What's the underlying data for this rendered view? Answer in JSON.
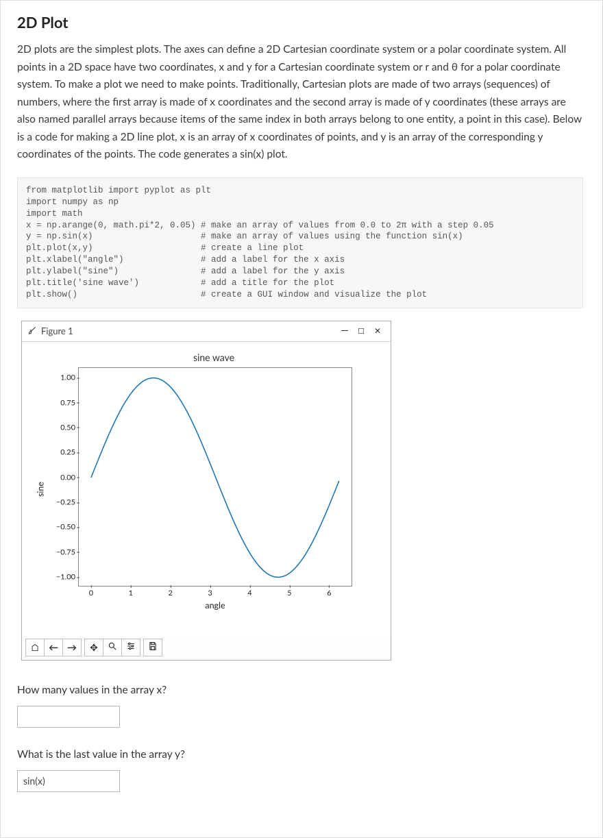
{
  "heading": "2D Plot",
  "intro": "2D plots are the simplest plots. The axes can define a 2D Cartesian coordinate system or a polar coordinate system. All points in a 2D space have two coordinates, x and y for a Cartesian coordinate system or r and θ  for a polar coordinate system. To make a plot we need to make points. Traditionally, Cartesian plots are made of two arrays (sequences) of numbers, where the first array is made of x coordinates and the second array is made of y coordinates (these arrays are also named parallel arrays because items of the same index in both arrays belong to one entity, a point in this case). Below is a code for making a 2D line plot, x is an array of x coordinates of points, and y is an array of the corresponding y coordinates of the points.  The code generates a sin(x) plot.",
  "code": "from matplotlib import pyplot as plt\nimport numpy as np\nimport math\nx = np.arange(0, math.pi*2, 0.05) # make an array of values from 0.0 to 2π with a step 0.05\ny = np.sin(x)                     # make an array of values using the function sin(x)\nplt.plot(x,y)                     # create a line plot\nplt.xlabel(\"angle\")               # add a label for the x axis\nplt.ylabel(\"sine\")                # add a label for the y axis\nplt.title('sine wave')            # add a title for the plot\nplt.show()                        # create a GUI window and visualize the plot",
  "figure": {
    "window_title": "Figure 1",
    "plot": {
      "type": "line",
      "title": "sine wave",
      "xlabel": "angle",
      "ylabel": "sine",
      "line_color": "#1f77b4",
      "line_width": 1.6,
      "background_color": "#ffffff",
      "border_color": "#888888",
      "xlim": [
        -0.31,
        6.6
      ],
      "ylim": [
        -1.1,
        1.1
      ],
      "xticks": [
        0,
        1,
        2,
        3,
        4,
        5,
        6
      ],
      "yticks": [
        -1.0,
        -0.75,
        -0.5,
        -0.25,
        0.0,
        0.25,
        0.5,
        0.75,
        1.0
      ],
      "ytick_labels": [
        "−1.00",
        "−0.75",
        "−0.50",
        "−0.25",
        "0.00",
        "0.25",
        "0.50",
        "0.75",
        "1.00"
      ],
      "x_data_range": {
        "start": 0.0,
        "stop": 6.283185307,
        "step": 0.05
      },
      "function": "sin"
    },
    "toolbar_buttons": [
      {
        "name": "home-icon",
        "glyph": "⌂"
      },
      {
        "name": "back-icon",
        "glyph": "←"
      },
      {
        "name": "forward-icon",
        "glyph": "→"
      },
      {
        "name": "pan-icon",
        "glyph": "✥"
      },
      {
        "name": "zoom-icon",
        "glyph": "🔍"
      },
      {
        "name": "configure-icon",
        "glyph": "≡"
      },
      {
        "name": "save-icon",
        "glyph": "💾"
      }
    ]
  },
  "questions": {
    "q1_label": "How many values in the array x?",
    "q1_value": "",
    "q2_label": "What is the last value in the array y?",
    "q2_value": "sin(x)"
  }
}
